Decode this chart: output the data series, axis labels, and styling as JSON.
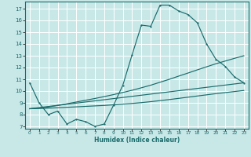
{
  "xlabel": "Humidex (Indice chaleur)",
  "bg_color": "#c8e8e8",
  "grid_color": "#ffffff",
  "line_color": "#1a6b6b",
  "xlim": [
    -0.5,
    23.5
  ],
  "ylim": [
    6.8,
    17.6
  ],
  "xticks": [
    0,
    1,
    2,
    3,
    4,
    5,
    6,
    7,
    8,
    9,
    10,
    11,
    12,
    13,
    14,
    15,
    16,
    17,
    18,
    19,
    20,
    21,
    22,
    23
  ],
  "yticks": [
    7,
    8,
    9,
    10,
    11,
    12,
    13,
    14,
    15,
    16,
    17
  ],
  "line1_x": [
    0,
    1,
    2,
    3,
    4,
    5,
    6,
    7,
    8,
    9,
    10,
    11,
    12,
    13,
    14,
    15,
    16,
    17,
    18,
    19,
    20,
    21,
    22,
    23
  ],
  "line1_y": [
    10.7,
    9.0,
    8.0,
    8.3,
    7.2,
    7.6,
    7.4,
    7.0,
    7.2,
    8.8,
    10.5,
    13.1,
    15.6,
    15.5,
    17.3,
    17.3,
    16.8,
    16.5,
    15.8,
    14.0,
    12.7,
    12.1,
    11.2,
    10.7
  ],
  "line2_x": [
    0,
    1,
    2,
    3,
    4,
    5,
    6,
    7,
    8,
    9,
    10,
    11,
    12,
    13,
    14,
    15,
    16,
    17,
    18,
    19,
    20,
    21,
    22,
    23
  ],
  "line2_y": [
    8.5,
    8.52,
    8.55,
    8.58,
    8.62,
    8.66,
    8.7,
    8.74,
    8.78,
    8.83,
    8.89,
    8.95,
    9.02,
    9.1,
    9.19,
    9.28,
    9.38,
    9.48,
    9.58,
    9.68,
    9.78,
    9.87,
    9.96,
    10.05
  ],
  "line3_x": [
    0,
    1,
    2,
    3,
    4,
    5,
    6,
    7,
    8,
    9,
    10,
    11,
    12,
    13,
    14,
    15,
    16,
    17,
    18,
    19,
    20,
    21,
    22,
    23
  ],
  "line3_y": [
    8.5,
    8.55,
    8.65,
    8.78,
    8.92,
    9.07,
    9.22,
    9.37,
    9.53,
    9.7,
    9.88,
    10.07,
    10.28,
    10.5,
    10.75,
    11.0,
    11.27,
    11.53,
    11.8,
    12.06,
    12.32,
    12.55,
    12.78,
    13.0
  ],
  "line4_x": [
    0,
    23
  ],
  "line4_y": [
    8.5,
    10.7
  ]
}
